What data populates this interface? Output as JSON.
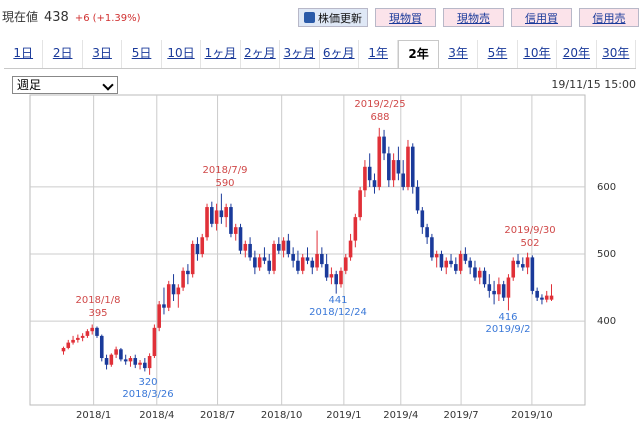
{
  "header": {
    "price_label": "現在値",
    "price": 438,
    "change": "+6",
    "change_pct": "(+1.39%)"
  },
  "buttons": [
    "株価更新",
    "現物買",
    "現物売",
    "信用買",
    "信用売"
  ],
  "tabs": [
    "1日",
    "2日",
    "3日",
    "5日",
    "10日",
    "1ヶ月",
    "2ヶ月",
    "3ヶ月",
    "6ヶ月",
    "1年",
    "2年",
    "3年",
    "5年",
    "10年",
    "20年",
    "30年"
  ],
  "selected_tab": 10,
  "period_select": "週足",
  "timestamp": "19/11/15 15:00",
  "chart_data": {
    "type": "candlestick",
    "grid": true,
    "up_color": "#e03038",
    "down_color": "#1a3a9a",
    "ylim": [
      275,
      737
    ],
    "yticks": [
      400,
      500,
      600
    ],
    "xlim": [
      -7,
      109
    ],
    "xticks": [
      {
        "value": 6.3,
        "label": "2018/1"
      },
      {
        "value": 19.5,
        "label": "2018/4"
      },
      {
        "value": 32.2,
        "label": "2018/7"
      },
      {
        "value": 45.6,
        "label": "2018/10"
      },
      {
        "value": 58.6,
        "label": "2019/1"
      },
      {
        "value": 70.5,
        "label": "2019/4"
      },
      {
        "value": 83.1,
        "label": "2019/7"
      },
      {
        "value": 97.9,
        "label": "2019/10"
      }
    ],
    "open": [
      355,
      360,
      368,
      372,
      375,
      378,
      385,
      390,
      378,
      345,
      335,
      350,
      358,
      343,
      340,
      345,
      335,
      338,
      330,
      348,
      390,
      425,
      420,
      455,
      440,
      450,
      475,
      470,
      515,
      500,
      525,
      570,
      545,
      565,
      555,
      570,
      530,
      540,
      505,
      515,
      495,
      480,
      495,
      490,
      475,
      515,
      505,
      520,
      500,
      490,
      475,
      495,
      490,
      480,
      500,
      485,
      465,
      470,
      455,
      475,
      495,
      520,
      555,
      595,
      630,
      610,
      600,
      675,
      650,
      610,
      640,
      620,
      600,
      660,
      600,
      565,
      540,
      525,
      495,
      500,
      480,
      490,
      485,
      475,
      500,
      490,
      480,
      465,
      475,
      455,
      445,
      440,
      455,
      435,
      465,
      490,
      485,
      480,
      495,
      445,
      435,
      432,
      432
    ],
    "high": [
      362,
      372,
      378,
      380,
      382,
      388,
      395,
      392,
      380,
      350,
      352,
      362,
      360,
      350,
      348,
      350,
      342,
      345,
      352,
      395,
      430,
      450,
      460,
      470,
      455,
      480,
      485,
      520,
      525,
      530,
      575,
      578,
      575,
      590,
      575,
      575,
      545,
      545,
      520,
      525,
      505,
      500,
      510,
      500,
      520,
      525,
      525,
      530,
      510,
      505,
      500,
      510,
      495,
      535,
      510,
      500,
      480,
      475,
      480,
      500,
      530,
      560,
      600,
      640,
      650,
      620,
      688,
      685,
      660,
      650,
      660,
      640,
      670,
      665,
      610,
      570,
      545,
      530,
      505,
      505,
      495,
      500,
      495,
      505,
      510,
      495,
      490,
      480,
      480,
      470,
      460,
      465,
      460,
      470,
      495,
      500,
      495,
      502,
      498,
      450,
      440,
      445,
      455
    ],
    "low": [
      350,
      358,
      365,
      368,
      370,
      375,
      380,
      375,
      340,
      328,
      332,
      345,
      340,
      335,
      332,
      330,
      328,
      325,
      320,
      345,
      385,
      410,
      415,
      430,
      420,
      445,
      455,
      465,
      490,
      495,
      520,
      540,
      535,
      545,
      540,
      525,
      520,
      500,
      495,
      490,
      470,
      475,
      485,
      470,
      470,
      500,
      495,
      495,
      480,
      470,
      470,
      485,
      470,
      475,
      480,
      460,
      455,
      441,
      450,
      470,
      490,
      510,
      550,
      585,
      600,
      590,
      595,
      640,
      600,
      600,
      610,
      595,
      595,
      590,
      560,
      530,
      515,
      490,
      480,
      475,
      470,
      480,
      470,
      470,
      485,
      470,
      460,
      455,
      450,
      435,
      425,
      430,
      430,
      416,
      460,
      480,
      475,
      470,
      440,
      430,
      425,
      428,
      430
    ],
    "close": [
      360,
      368,
      372,
      375,
      378,
      385,
      390,
      378,
      345,
      335,
      350,
      358,
      343,
      340,
      345,
      335,
      338,
      330,
      348,
      390,
      425,
      420,
      455,
      440,
      450,
      475,
      470,
      515,
      500,
      525,
      570,
      545,
      565,
      555,
      570,
      530,
      540,
      505,
      515,
      495,
      480,
      495,
      490,
      475,
      515,
      505,
      520,
      500,
      490,
      475,
      495,
      490,
      480,
      500,
      485,
      465,
      470,
      455,
      475,
      495,
      520,
      555,
      595,
      630,
      610,
      600,
      675,
      650,
      610,
      640,
      620,
      600,
      660,
      600,
      565,
      540,
      525,
      495,
      500,
      480,
      490,
      485,
      475,
      500,
      490,
      480,
      465,
      475,
      455,
      445,
      440,
      455,
      435,
      465,
      490,
      485,
      480,
      495,
      445,
      435,
      432,
      438,
      438
    ],
    "annotations": [
      {
        "date": "2018/1/8",
        "value": 395,
        "color": "#d04848"
      },
      {
        "date": "2018/3/26",
        "value": 320,
        "color": "#3a78d8"
      },
      {
        "date": "2018/7/9",
        "value": 590,
        "color": "#d04848"
      },
      {
        "date": "2018/12/24",
        "value": 441,
        "color": "#3a78d8"
      },
      {
        "date": "2019/2/25",
        "value": 688,
        "color": "#d04848"
      },
      {
        "date": "2019/9/2",
        "value": 416,
        "color": "#3a78d8"
      },
      {
        "date": "2019/9/30",
        "value": 502,
        "color": "#d04848"
      }
    ]
  }
}
